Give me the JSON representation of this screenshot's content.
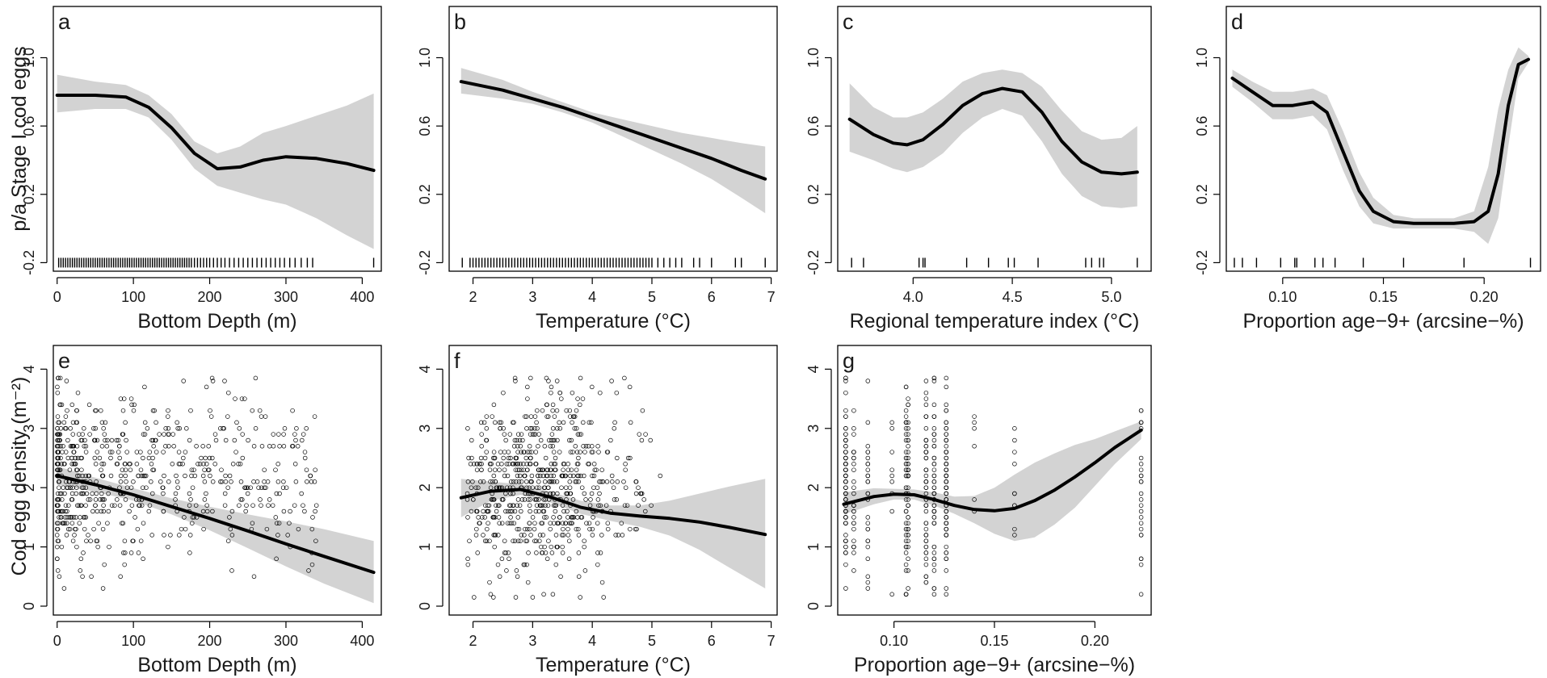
{
  "colors": {
    "line": "#000000",
    "band": "#d3d3d3",
    "axis": "#000000",
    "point": "#000000"
  },
  "figure": {
    "ylabel_top": "p/a Stage I cod eggs",
    "ylabel_bottom": "Cod egg density (m⁻²)"
  },
  "chart_data": [
    {
      "id": "a",
      "type": "line",
      "panel_label": "a",
      "xlabel": "Bottom Depth (m)",
      "xlim": [
        -5,
        425
      ],
      "ylim": [
        -0.25,
        1.3
      ],
      "xticks": [
        0,
        100,
        200,
        300,
        400
      ],
      "xtick_labels": [
        "0",
        "100",
        "200",
        "300",
        "400"
      ],
      "yticks": [
        -0.2,
        0.2,
        0.6,
        1.0
      ],
      "ytick_labels": [
        "-0.2",
        "0.2",
        "0.6",
        "1.0"
      ],
      "fit_x": [
        0,
        50,
        90,
        120,
        150,
        180,
        210,
        240,
        270,
        300,
        340,
        380,
        415
      ],
      "fit_y": [
        0.78,
        0.78,
        0.77,
        0.71,
        0.59,
        0.44,
        0.35,
        0.36,
        0.4,
        0.42,
        0.41,
        0.38,
        0.34
      ],
      "band_lower": [
        0.68,
        0.7,
        0.7,
        0.65,
        0.52,
        0.35,
        0.25,
        0.21,
        0.17,
        0.14,
        0.06,
        -0.04,
        -0.12
      ],
      "band_upper": [
        0.9,
        0.86,
        0.84,
        0.78,
        0.67,
        0.51,
        0.44,
        0.48,
        0.56,
        0.6,
        0.66,
        0.72,
        0.79
      ],
      "rug_y": -0.2,
      "rug": [
        2,
        5,
        8,
        11,
        14,
        17,
        20,
        23,
        26,
        29,
        32,
        35,
        38,
        41,
        44,
        47,
        50,
        53,
        56,
        59,
        62,
        65,
        68,
        71,
        74,
        77,
        80,
        83,
        86,
        89,
        92,
        95,
        98,
        101,
        104,
        107,
        110,
        113,
        116,
        119,
        122,
        125,
        128,
        131,
        134,
        137,
        140,
        143,
        146,
        149,
        152,
        155,
        158,
        161,
        164,
        167,
        170,
        173,
        176,
        180,
        184,
        188,
        192,
        196,
        200,
        205,
        210,
        215,
        220,
        226,
        232,
        238,
        244,
        250,
        256,
        262,
        268,
        274,
        280,
        286,
        292,
        298,
        305,
        312,
        320,
        328,
        335,
        415
      ]
    },
    {
      "id": "b",
      "type": "line",
      "panel_label": "b",
      "xlabel": "Temperature (°C)",
      "xlim": [
        1.6,
        7.1
      ],
      "ylim": [
        -0.25,
        1.3
      ],
      "xticks": [
        2,
        3,
        4,
        5,
        6,
        7
      ],
      "xtick_labels": [
        "2",
        "3",
        "4",
        "5",
        "6",
        "7"
      ],
      "yticks": [
        -0.2,
        0.2,
        0.6,
        1.0
      ],
      "ytick_labels": [
        "-0.2",
        "0.2",
        "0.6",
        "1.0"
      ],
      "fit_x": [
        1.8,
        2.5,
        3.0,
        3.5,
        4.0,
        4.5,
        5.0,
        5.5,
        6.0,
        6.5,
        6.9
      ],
      "fit_y": [
        0.86,
        0.81,
        0.76,
        0.71,
        0.65,
        0.59,
        0.53,
        0.47,
        0.41,
        0.34,
        0.29
      ],
      "band_lower": [
        0.79,
        0.76,
        0.73,
        0.68,
        0.62,
        0.54,
        0.46,
        0.38,
        0.29,
        0.18,
        0.09
      ],
      "band_upper": [
        0.94,
        0.87,
        0.8,
        0.74,
        0.68,
        0.64,
        0.6,
        0.56,
        0.53,
        0.5,
        0.48
      ],
      "rug_y": -0.2,
      "rug": [
        1.82,
        1.95,
        2.0,
        2.05,
        2.1,
        2.15,
        2.2,
        2.25,
        2.3,
        2.35,
        2.4,
        2.45,
        2.5,
        2.55,
        2.6,
        2.65,
        2.7,
        2.75,
        2.8,
        2.85,
        2.9,
        2.95,
        3.0,
        3.05,
        3.1,
        3.15,
        3.2,
        3.25,
        3.3,
        3.35,
        3.4,
        3.45,
        3.5,
        3.55,
        3.6,
        3.65,
        3.7,
        3.75,
        3.8,
        3.85,
        3.9,
        3.95,
        4.0,
        4.05,
        4.1,
        4.15,
        4.2,
        4.25,
        4.3,
        4.35,
        4.4,
        4.45,
        4.5,
        4.55,
        4.6,
        4.65,
        4.7,
        4.75,
        4.8,
        4.85,
        4.9,
        4.95,
        5.0,
        5.1,
        5.2,
        5.3,
        5.4,
        5.5,
        5.7,
        5.8,
        6.0,
        6.4,
        6.5,
        6.9
      ]
    },
    {
      "id": "c",
      "type": "line",
      "panel_label": "c",
      "xlabel": "Regional temperature index (°C)",
      "xlim": [
        3.62,
        5.2
      ],
      "ylim": [
        -0.25,
        1.3
      ],
      "xticks": [
        4.0,
        4.5,
        5.0
      ],
      "xtick_labels": [
        "4.0",
        "4.5",
        "5.0"
      ],
      "yticks": [
        -0.2,
        0.2,
        0.6,
        1.0
      ],
      "ytick_labels": [
        "-0.2",
        "0.2",
        "0.6",
        "1.0"
      ],
      "fit_x": [
        3.68,
        3.8,
        3.9,
        3.97,
        4.05,
        4.15,
        4.25,
        4.35,
        4.45,
        4.55,
        4.65,
        4.75,
        4.85,
        4.95,
        5.05,
        5.13
      ],
      "fit_y": [
        0.64,
        0.55,
        0.5,
        0.49,
        0.52,
        0.61,
        0.72,
        0.79,
        0.82,
        0.8,
        0.68,
        0.51,
        0.39,
        0.33,
        0.32,
        0.33
      ],
      "band_lower": [
        0.45,
        0.4,
        0.35,
        0.33,
        0.36,
        0.44,
        0.56,
        0.65,
        0.7,
        0.66,
        0.51,
        0.32,
        0.19,
        0.13,
        0.12,
        0.13
      ],
      "band_upper": [
        0.85,
        0.71,
        0.65,
        0.65,
        0.68,
        0.76,
        0.86,
        0.91,
        0.93,
        0.91,
        0.83,
        0.69,
        0.57,
        0.52,
        0.53,
        0.6
      ],
      "rug_y": -0.2,
      "rug": [
        3.69,
        3.75,
        4.03,
        4.05,
        4.06,
        4.27,
        4.38,
        4.48,
        4.51,
        4.63,
        4.87,
        4.9,
        4.94,
        4.96,
        5.13
      ]
    },
    {
      "id": "d",
      "type": "line",
      "panel_label": "d",
      "xlabel": "Proportion age−9+ (arcsine−%)",
      "xlim": [
        0.072,
        0.228
      ],
      "ylim": [
        -0.25,
        1.3
      ],
      "xticks": [
        0.1,
        0.15,
        0.2
      ],
      "xtick_labels": [
        "0.10",
        "0.15",
        "0.20"
      ],
      "yticks": [
        -0.2,
        0.2,
        0.6,
        1.0
      ],
      "ytick_labels": [
        "-0.2",
        "0.2",
        "0.6",
        "1.0"
      ],
      "fit_x": [
        0.075,
        0.085,
        0.095,
        0.105,
        0.115,
        0.122,
        0.13,
        0.138,
        0.145,
        0.155,
        0.165,
        0.175,
        0.185,
        0.195,
        0.202,
        0.207,
        0.212,
        0.217,
        0.222
      ],
      "fit_y": [
        0.88,
        0.8,
        0.72,
        0.72,
        0.74,
        0.68,
        0.45,
        0.22,
        0.1,
        0.04,
        0.03,
        0.03,
        0.03,
        0.04,
        0.1,
        0.32,
        0.72,
        0.96,
        0.99
      ],
      "band_lower": [
        0.83,
        0.74,
        0.64,
        0.64,
        0.66,
        0.58,
        0.34,
        0.13,
        0.03,
        0.0,
        0.0,
        0.0,
        0.0,
        -0.02,
        -0.09,
        0.06,
        0.48,
        0.88,
        0.97
      ],
      "band_upper": [
        0.93,
        0.86,
        0.8,
        0.8,
        0.82,
        0.78,
        0.57,
        0.33,
        0.18,
        0.08,
        0.06,
        0.06,
        0.06,
        0.1,
        0.36,
        0.7,
        0.93,
        1.06,
        1.01
      ],
      "rug_y": -0.2,
      "rug": [
        0.076,
        0.08,
        0.087,
        0.099,
        0.106,
        0.107,
        0.116,
        0.12,
        0.126,
        0.14,
        0.16,
        0.19,
        0.223
      ]
    },
    {
      "id": "e",
      "type": "scatter",
      "panel_label": "e",
      "xlabel": "Bottom Depth (m)",
      "xlim": [
        -5,
        425
      ],
      "ylim": [
        -0.15,
        4.4
      ],
      "xticks": [
        0,
        100,
        200,
        300,
        400
      ],
      "xtick_labels": [
        "0",
        "100",
        "200",
        "300",
        "400"
      ],
      "yticks": [
        0,
        1,
        2,
        3,
        4
      ],
      "ytick_labels": [
        "0",
        "1",
        "2",
        "3",
        "4"
      ],
      "fit_x": [
        0,
        50,
        100,
        150,
        200,
        250,
        300,
        350,
        415
      ],
      "fit_y": [
        2.2,
        2.05,
        1.88,
        1.68,
        1.48,
        1.27,
        1.05,
        0.84,
        0.57
      ],
      "band_lower": [
        2.05,
        1.93,
        1.78,
        1.55,
        1.28,
        0.98,
        0.67,
        0.38,
        0.05
      ],
      "band_upper": [
        2.36,
        2.17,
        1.99,
        1.82,
        1.68,
        1.55,
        1.43,
        1.3,
        1.1
      ],
      "points_gen": {
        "n": 650,
        "seed": 11,
        "x_min": 0,
        "x_max": 340,
        "x_skew": 2.0,
        "y_min": 0.3,
        "y_max": 3.85,
        "y_center": [
          2.2,
          0.75
        ]
      }
    },
    {
      "id": "f",
      "type": "scatter",
      "panel_label": "f",
      "xlabel": "Temperature (°C)",
      "xlim": [
        1.6,
        7.1
      ],
      "ylim": [
        -0.15,
        4.4
      ],
      "xticks": [
        2,
        3,
        4,
        5,
        6,
        7
      ],
      "xtick_labels": [
        "2",
        "3",
        "4",
        "5",
        "6",
        "7"
      ],
      "yticks": [
        0,
        1,
        2,
        3,
        4
      ],
      "ytick_labels": [
        "0",
        "1",
        "2",
        "3",
        "4"
      ],
      "fit_x": [
        1.8,
        2.3,
        2.8,
        3.3,
        3.8,
        4.3,
        4.8,
        5.3,
        5.8,
        6.3,
        6.9
      ],
      "fit_y": [
        1.83,
        1.94,
        1.97,
        1.84,
        1.67,
        1.57,
        1.52,
        1.48,
        1.42,
        1.33,
        1.21
      ],
      "band_lower": [
        1.5,
        1.78,
        1.88,
        1.75,
        1.56,
        1.44,
        1.34,
        1.19,
        0.95,
        0.65,
        0.3
      ],
      "band_upper": [
        2.15,
        2.1,
        2.06,
        1.93,
        1.78,
        1.7,
        1.7,
        1.78,
        1.9,
        2.02,
        2.15
      ],
      "points_gen": {
        "n": 650,
        "seed": 23,
        "x_min": 1.9,
        "x_max": 6.9,
        "x_mode": 3.0,
        "x_spread": 0.75,
        "y_min": 0.15,
        "y_max": 3.85,
        "y_center": [
          2.0,
          0.75
        ]
      }
    },
    {
      "id": "g",
      "type": "scatter",
      "panel_label": "g",
      "xlabel": "Proportion age−9+ (arcsine−%)",
      "xlim": [
        0.072,
        0.228
      ],
      "ylim": [
        -0.15,
        4.4
      ],
      "xticks": [
        0.1,
        0.15,
        0.2
      ],
      "xtick_labels": [
        "0.10",
        "0.15",
        "0.20"
      ],
      "yticks": [
        0,
        1,
        2,
        3,
        4
      ],
      "ytick_labels": [
        "0",
        "1",
        "2",
        "3",
        "4"
      ],
      "fit_x": [
        0.075,
        0.09,
        0.1,
        0.11,
        0.12,
        0.13,
        0.14,
        0.15,
        0.16,
        0.17,
        0.18,
        0.19,
        0.2,
        0.21,
        0.223
      ],
      "fit_y": [
        1.72,
        1.85,
        1.89,
        1.88,
        1.8,
        1.7,
        1.63,
        1.61,
        1.65,
        1.78,
        1.96,
        2.18,
        2.42,
        2.68,
        2.97
      ],
      "band_lower": [
        1.55,
        1.72,
        1.8,
        1.8,
        1.7,
        1.56,
        1.4,
        1.22,
        1.1,
        1.16,
        1.38,
        1.66,
        2.03,
        2.4,
        2.82
      ],
      "band_upper": [
        1.92,
        1.99,
        1.98,
        1.97,
        1.92,
        1.85,
        1.86,
        2.0,
        2.22,
        2.42,
        2.58,
        2.72,
        2.82,
        2.95,
        3.12
      ],
      "points_gen": {
        "n": 480,
        "seed": 37,
        "columns": [
          0.076,
          0.08,
          0.087,
          0.099,
          0.106,
          0.107,
          0.116,
          0.12,
          0.126,
          0.14,
          0.16,
          0.223
        ],
        "weights": [
          12,
          4,
          3,
          1,
          5,
          5,
          8,
          5,
          12,
          1,
          1,
          3
        ],
        "y_min": 0.2,
        "y_max": 3.85,
        "y_center": [
          1.95,
          0.8
        ]
      }
    }
  ]
}
